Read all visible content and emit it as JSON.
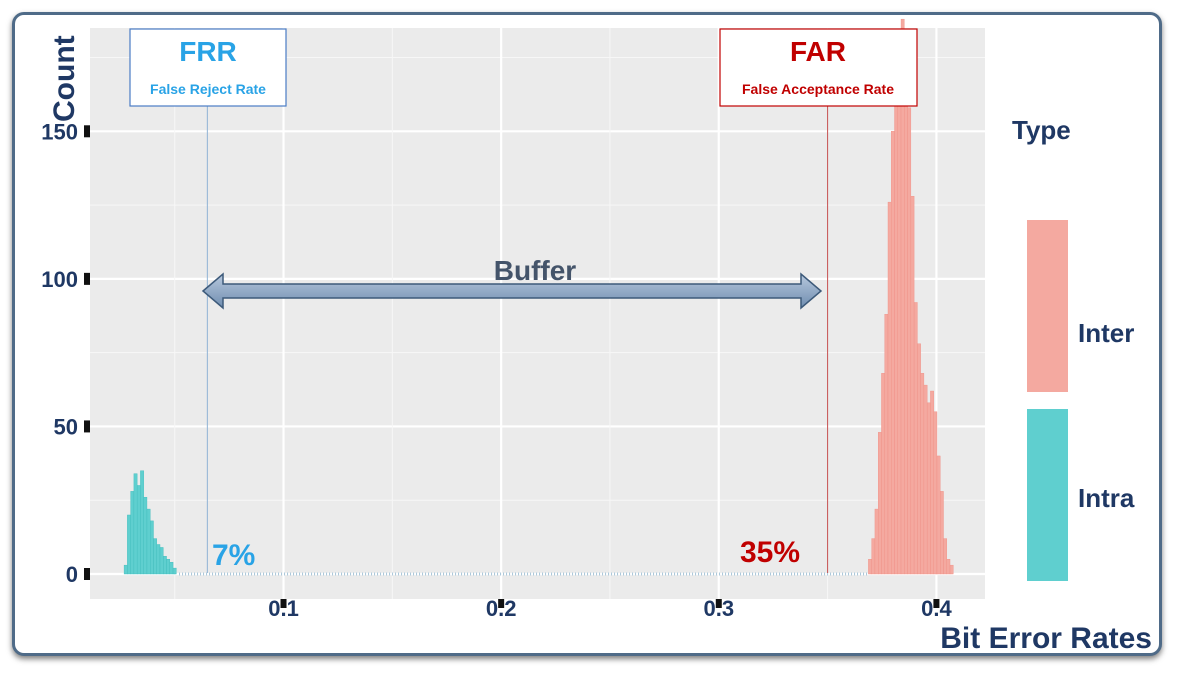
{
  "chart_data": {
    "type": "bar",
    "title": "",
    "xlabel": "Bit Error Rates",
    "ylabel": "Count",
    "xlim": [
      0.012,
      0.426
    ],
    "ylim": [
      0,
      185
    ],
    "x_ticks": [
      "0.1",
      "0.2",
      "0.3",
      "0.4"
    ],
    "y_ticks": [
      "0",
      "50",
      "100",
      "150"
    ],
    "grid": true,
    "legend_title": "Type",
    "legend_position": "right",
    "bin_width": 0.0015,
    "series": [
      {
        "name": "Inter",
        "color": "#f4a9a0",
        "x": [
          0.3695,
          0.371,
          0.3725,
          0.374,
          0.3755,
          0.377,
          0.3785,
          0.38,
          0.3815,
          0.383,
          0.3845,
          0.386,
          0.3875,
          0.389,
          0.3905,
          0.392,
          0.3935,
          0.395,
          0.3965,
          0.398,
          0.3995,
          0.401,
          0.4025,
          0.404,
          0.4055,
          0.407
        ],
        "values": [
          5,
          12,
          22,
          48,
          68,
          88,
          126,
          150,
          168,
          184,
          188,
          176,
          158,
          128,
          92,
          78,
          68,
          64,
          58,
          62,
          55,
          40,
          28,
          12,
          5,
          3
        ]
      },
      {
        "name": "Intra",
        "color": "#5fcfcf",
        "x": [
          0.0275,
          0.029,
          0.0305,
          0.032,
          0.0335,
          0.035,
          0.0365,
          0.038,
          0.0395,
          0.041,
          0.0425,
          0.044,
          0.0455,
          0.047,
          0.0485,
          0.05
        ],
        "values": [
          3,
          20,
          28,
          34,
          30,
          35,
          26,
          22,
          18,
          12,
          10,
          9,
          6,
          5,
          4,
          2
        ]
      }
    ],
    "annotations": {
      "frr_title": "FRR",
      "frr_subtitle": "False Reject Rate",
      "frr_value": "7%",
      "frr_x": 0.065,
      "far_title": "FAR",
      "far_subtitle": "False Acceptance Rate",
      "far_value": "35%",
      "far_x": 0.35,
      "buffer_label": "Buffer",
      "frr_color": "#29a3e6",
      "far_color": "#c00000",
      "arrow_color": "#8ca4c2"
    }
  }
}
